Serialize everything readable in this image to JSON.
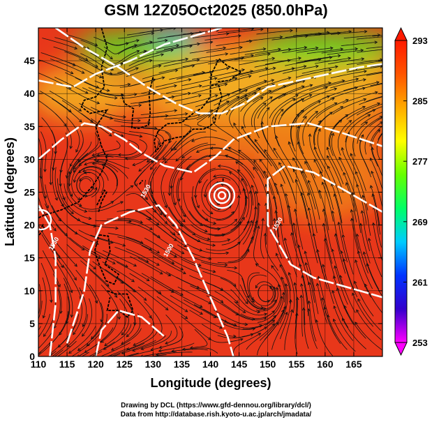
{
  "chart_data": {
    "type": "heatmap",
    "title": "GSM 12Z05Oct2025 (850.0hPa)",
    "xlabel": "Longitude (degrees)",
    "ylabel": "Latitude  (degrees)",
    "xlim": [
      110,
      170
    ],
    "ylim": [
      0,
      50
    ],
    "x_ticks": [
      "110",
      "115",
      "120",
      "125",
      "130",
      "135",
      "140",
      "145",
      "150",
      "155",
      "160",
      "165"
    ],
    "y_ticks": [
      "0",
      "5",
      "10",
      "15",
      "20",
      "25",
      "30",
      "35",
      "40",
      "45"
    ],
    "colorbar": {
      "ticks": [
        "293",
        "285",
        "277",
        "269",
        "261",
        "253"
      ],
      "min": 253,
      "max": 293,
      "colors": [
        "#ff00ff",
        "#3300cc",
        "#0033ff",
        "#00ccff",
        "#00ff66",
        "#66ff00",
        "#ffff00",
        "#ffaa00",
        "#ff5500",
        "#ff1a00"
      ]
    },
    "contour_labels": [
      "1530",
      "1500",
      "1530",
      "1530"
    ],
    "field_colors": {
      "warm": "#e8371a",
      "orange": "#f0801a",
      "yellow_orange": "#f3b020",
      "green": "#55dd22",
      "cyan": "#22ccdd"
    },
    "grid": true,
    "vortex_centers": [
      {
        "lon": 142,
        "lat": 24.5
      },
      {
        "lon": 118,
        "lat": 26
      },
      {
        "lon": 150,
        "lat": 9.5
      },
      {
        "lon": 123,
        "lat": 45
      }
    ]
  },
  "credits": {
    "drawing": "Drawing by DCL (https://www.gfd-dennou.org/library/dcl/)",
    "data": "Data from http://database.rish.kyoto-u.ac.jp/arch/jmadata/"
  }
}
